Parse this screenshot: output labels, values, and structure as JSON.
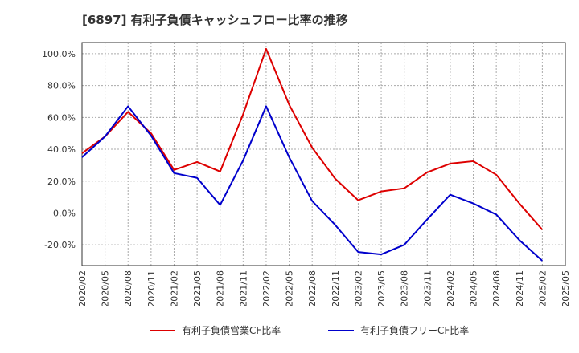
{
  "chart_data": {
    "type": "line",
    "title": "[6897]  有利子負債キャッシュフロー比率の推移",
    "xlabel": "",
    "ylabel": "",
    "x_ticks": [
      "2020/02",
      "2020/05",
      "2020/08",
      "2020/11",
      "2021/02",
      "2021/05",
      "2021/08",
      "2021/11",
      "2022/02",
      "2022/05",
      "2022/08",
      "2022/11",
      "2023/02",
      "2023/05",
      "2023/08",
      "2023/11",
      "2024/02",
      "2024/05",
      "2024/08",
      "2024/11",
      "2025/02",
      "2025/05"
    ],
    "y_ticks": [
      "100.0%",
      "80.0%",
      "60.0%",
      "40.0%",
      "20.0%",
      "0.0%",
      "-20.0%"
    ],
    "ylim": [
      -33,
      107
    ],
    "grid": true,
    "legend_position": "bottom",
    "series": [
      {
        "name": "有利子負債営業CF比率",
        "color": "#dd0000",
        "values": [
          37.5,
          48.0,
          63.5,
          50.0,
          27.0,
          32.0,
          26.0,
          62.0,
          103.0,
          68.0,
          41.0,
          21.5,
          8.0,
          13.5,
          15.5,
          25.5,
          31.0,
          32.5,
          24.0,
          6.0,
          -10.5
        ]
      },
      {
        "name": "有利子負債フリーCF比率",
        "color": "#0000cc",
        "values": [
          35.0,
          48.0,
          67.0,
          48.5,
          25.0,
          22.0,
          5.0,
          33.0,
          67.0,
          35.0,
          7.5,
          -7.5,
          -24.5,
          -26.0,
          -20.0,
          -4.0,
          11.5,
          6.0,
          -1.0,
          -17.0,
          -30.0
        ]
      }
    ]
  }
}
